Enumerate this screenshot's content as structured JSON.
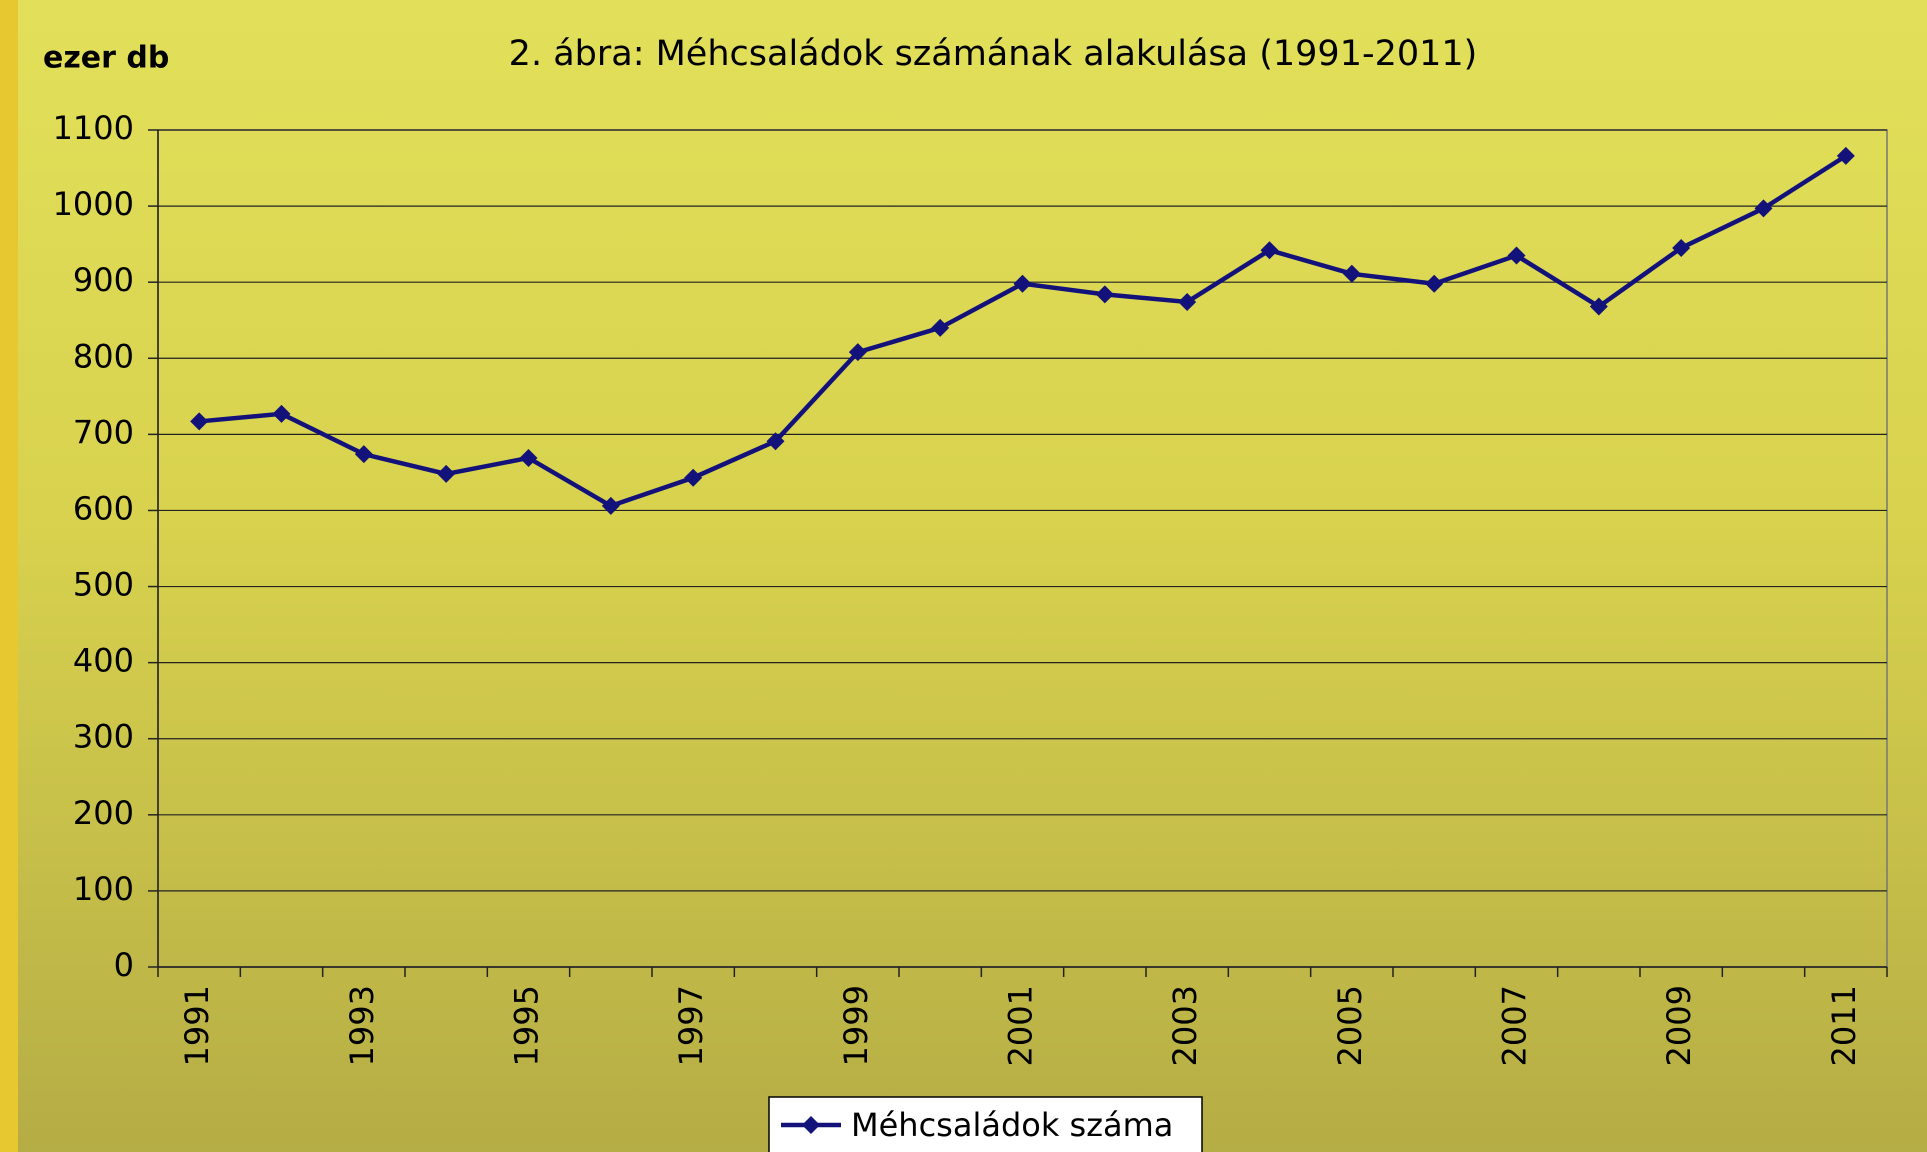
{
  "chart_data": {
    "type": "line",
    "title": "2. ábra: Méhcsaládok számának alakulása (1991-2011)",
    "y_label": "ezer db",
    "categories": [
      "1991",
      null,
      "1993",
      null,
      "1995",
      null,
      "1997",
      null,
      "1999",
      null,
      "2001",
      null,
      "2003",
      null,
      "2005",
      null,
      "2007",
      null,
      "2009",
      null,
      "2011"
    ],
    "series": [
      {
        "name": "Méhcsaládok száma",
        "color": "#12127a",
        "values": [
          717,
          727,
          674,
          648,
          669,
          606,
          643,
          691,
          808,
          840,
          898,
          884,
          874,
          942,
          911,
          898,
          935,
          868,
          945,
          997,
          1066
        ]
      }
    ],
    "ylim": [
      0,
      1100
    ],
    "yticks": [
      0,
      100,
      200,
      300,
      400,
      500,
      600,
      700,
      800,
      900,
      1000,
      1100
    ],
    "grid": true,
    "legend": "bottom"
  }
}
